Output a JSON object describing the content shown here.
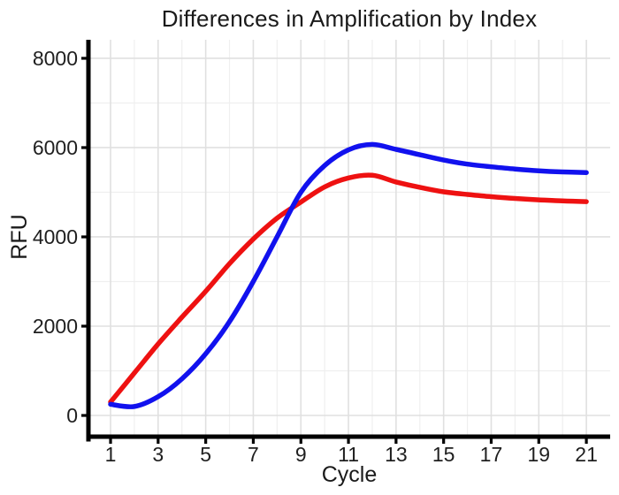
{
  "title": "Differences in Amplification by Index",
  "axis": {
    "x_label": "Cycle",
    "y_label": "RFU"
  },
  "chart_data": {
    "type": "line",
    "title": "Differences in Amplification by Index",
    "xlabel": "Cycle",
    "ylabel": "RFU",
    "x": [
      1,
      2,
      3,
      4,
      5,
      6,
      7,
      8,
      9,
      10,
      11,
      12,
      13,
      14,
      15,
      16,
      17,
      18,
      19,
      20,
      21
    ],
    "series": [
      {
        "name": "red",
        "color": "#EE1111",
        "values": [
          300,
          950,
          1600,
          2200,
          2780,
          3400,
          3950,
          4420,
          4780,
          5120,
          5320,
          5380,
          5230,
          5110,
          5010,
          4950,
          4900,
          4860,
          4830,
          4805,
          4790
        ]
      },
      {
        "name": "blue",
        "color": "#1111EE",
        "values": [
          250,
          200,
          420,
          820,
          1380,
          2100,
          3000,
          4000,
          5000,
          5600,
          5950,
          6070,
          5960,
          5840,
          5720,
          5630,
          5570,
          5520,
          5480,
          5455,
          5440
        ]
      }
    ],
    "xticks": [
      1,
      3,
      5,
      7,
      9,
      11,
      13,
      15,
      17,
      19,
      21
    ],
    "yticks": [
      0,
      2000,
      4000,
      6000,
      8000
    ],
    "yticks_minor": [
      1000,
      3000,
      5000,
      7000
    ],
    "xlim": [
      0.07,
      22.0
    ],
    "ylim": [
      -475,
      8415
    ],
    "grid": "major and minor, light gray, on",
    "legend": "none"
  },
  "colors": {
    "series_red": "#EE1111",
    "series_blue": "#1111EE",
    "axis_line": "#000000",
    "grid_major": "#e0e0e0",
    "grid_minor": "#efefef",
    "text": "#1a1a1a",
    "background": "#ffffff"
  }
}
